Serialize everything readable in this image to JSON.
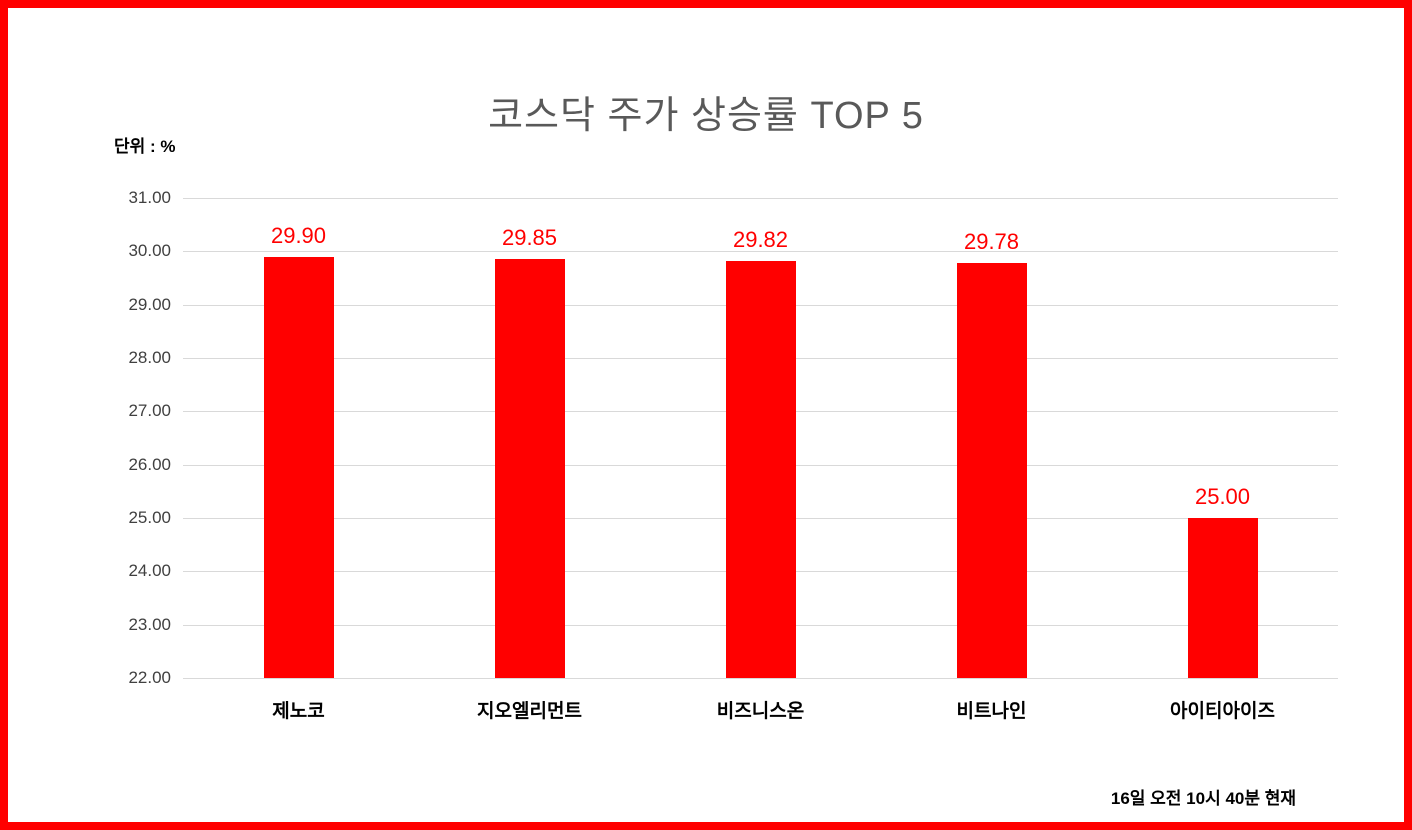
{
  "title": "코스닥 주가 상승률 TOP 5",
  "unit_label": "단위 : %",
  "timestamp": "16일 오전 10시 40분 현재",
  "colors": {
    "bar": "#FF0000",
    "value_label": "#FF0000",
    "border": "#FF0000",
    "title_text": "#595959",
    "axis_text": "#404040",
    "category_text": "#000000",
    "gridline": "#D9D9D9",
    "background": "#FFFFFF"
  },
  "chart_data": {
    "type": "bar",
    "title": "코스닥 주가 상승률 TOP 5",
    "xlabel": "",
    "ylabel": "단위 : %",
    "categories": [
      "제노코",
      "지오엘리먼트",
      "비즈니스온",
      "비트나인",
      "아이티아이즈"
    ],
    "values": [
      29.9,
      29.85,
      29.82,
      29.78,
      25.0
    ],
    "value_labels": [
      "29.90",
      "29.85",
      "29.82",
      "29.78",
      "25.00"
    ],
    "ylim": [
      22,
      31
    ],
    "ytick_step": 1,
    "ytick_labels": [
      "22.00",
      "23.00",
      "24.00",
      "25.00",
      "26.00",
      "27.00",
      "28.00",
      "29.00",
      "30.00",
      "31.00"
    ],
    "grid": true,
    "legend": false,
    "annotation": "16일 오전 10시 40분 현재"
  }
}
